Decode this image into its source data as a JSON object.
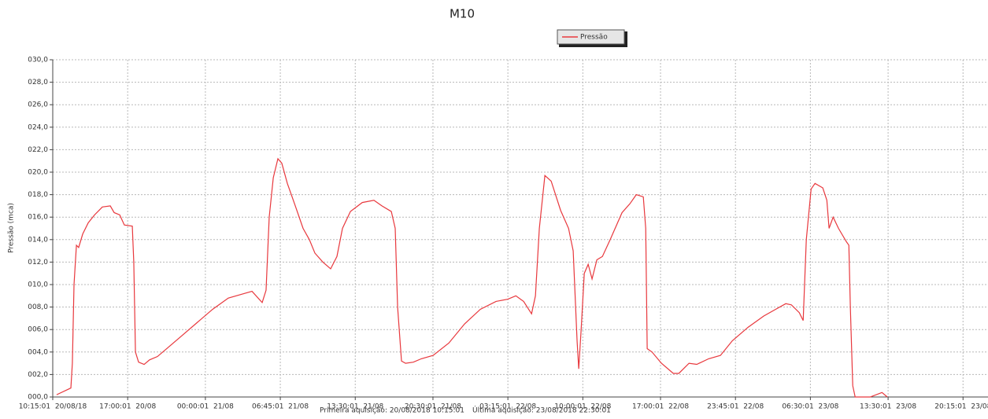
{
  "chart_data": {
    "type": "line",
    "title": "M10",
    "y_label": "Pressão (mca)",
    "annotations": [
      "Primeira aquisição: 20/08/2018 10:15:01",
      "Última aquisição: 23/08/2018 22:30:01"
    ],
    "xlim": [
      "2018-08-20T10:15:01",
      "2018-08-23T22:30:01"
    ],
    "xticks": [
      {
        "value": "2018-08-20T10:15:01",
        "label": "10:15:01  20/08/18"
      },
      {
        "value": "2018-08-20T17:00:01",
        "label": "17:00:01  20/08"
      },
      {
        "value": "2018-08-21T00:00:01",
        "label": "00:00:01  21/08"
      },
      {
        "value": "2018-08-21T06:45:01",
        "label": "06:45:01  21/08"
      },
      {
        "value": "2018-08-21T13:30:01",
        "label": "13:30:01  21/08"
      },
      {
        "value": "2018-08-21T20:30:01",
        "label": "20:30:01  21/08"
      },
      {
        "value": "2018-08-22T03:15:01",
        "label": "03:15:01  22/08"
      },
      {
        "value": "2018-08-22T10:00:01",
        "label": "10:00:01  22/08"
      },
      {
        "value": "2018-08-22T17:00:01",
        "label": "17:00:01  22/08"
      },
      {
        "value": "2018-08-22T23:45:01",
        "label": "23:45:01  22/08"
      },
      {
        "value": "2018-08-23T06:30:01",
        "label": "06:30:01  23/08"
      },
      {
        "value": "2018-08-23T13:30:01",
        "label": "13:30:01  23/08"
      },
      {
        "value": "2018-08-23T20:15:01",
        "label": "20:15:01  23/08"
      }
    ],
    "ylim": [
      0,
      30
    ],
    "yticks": [
      {
        "value": 0,
        "label": "000,0"
      },
      {
        "value": 2,
        "label": "002,0"
      },
      {
        "value": 4,
        "label": "004,0"
      },
      {
        "value": 6,
        "label": "006,0"
      },
      {
        "value": 8,
        "label": "008,0"
      },
      {
        "value": 10,
        "label": "010,0"
      },
      {
        "value": 12,
        "label": "012,0"
      },
      {
        "value": 14,
        "label": "014,0"
      },
      {
        "value": 16,
        "label": "016,0"
      },
      {
        "value": 18,
        "label": "018,0"
      },
      {
        "value": 20,
        "label": "020,0"
      },
      {
        "value": 22,
        "label": "022,0"
      },
      {
        "value": 24,
        "label": "024,0"
      },
      {
        "value": 26,
        "label": "026,0"
      },
      {
        "value": 28,
        "label": "028,0"
      },
      {
        "value": 30,
        "label": "030,0"
      }
    ],
    "grid": true,
    "legend": "top",
    "x": [
      "2018-08-20T10:36",
      "2018-08-20T11:53",
      "2018-08-20T12:01",
      "2018-08-20T12:10",
      "2018-08-20T12:23",
      "2018-08-20T12:35",
      "2018-08-20T12:57",
      "2018-08-20T13:27",
      "2018-08-20T14:01",
      "2018-08-20T14:43",
      "2018-08-20T15:26",
      "2018-08-20T15:47",
      "2018-08-20T16:17",
      "2018-08-20T16:42",
      "2018-08-20T17:25",
      "2018-08-20T17:33",
      "2018-08-20T17:42",
      "2018-08-20T17:59",
      "2018-08-20T18:29",
      "2018-08-20T18:58",
      "2018-08-20T19:41",
      "2018-08-20T20:45",
      "2018-08-20T21:49",
      "2018-08-20T23:14",
      "2018-08-21T00:39",
      "2018-08-21T02:04",
      "2018-08-21T03:29",
      "2018-08-21T04:12",
      "2018-08-21T05:07",
      "2018-08-21T05:28",
      "2018-08-21T05:45",
      "2018-08-21T06:07",
      "2018-08-21T06:32",
      "2018-08-21T06:53",
      "2018-08-21T07:23",
      "2018-08-21T08:06",
      "2018-08-21T08:48",
      "2018-08-21T09:22",
      "2018-08-21T09:52",
      "2018-08-21T10:35",
      "2018-08-21T11:17",
      "2018-08-21T11:51",
      "2018-08-21T12:21",
      "2018-08-21T13:04",
      "2018-08-21T14:08",
      "2018-08-21T15:11",
      "2018-08-21T15:54",
      "2018-08-21T16:45",
      "2018-08-21T17:06",
      "2018-08-21T17:19",
      "2018-08-21T17:40",
      "2018-08-21T18:02",
      "2018-08-21T18:44",
      "2018-08-21T19:27",
      "2018-08-21T20:31",
      "2018-08-21T21:56",
      "2018-08-21T23:21",
      "2018-08-22T00:46",
      "2018-08-22T02:11",
      "2018-08-22T03:15",
      "2018-08-22T03:58",
      "2018-08-22T04:40",
      "2018-08-22T05:23",
      "2018-08-22T05:44",
      "2018-08-22T06:05",
      "2018-08-22T06:35",
      "2018-08-22T07:09",
      "2018-08-22T08:00",
      "2018-08-22T08:43",
      "2018-08-22T09:08",
      "2018-08-22T09:29",
      "2018-08-22T09:38",
      "2018-08-22T09:51",
      "2018-08-22T10:08",
      "2018-08-22T10:29",
      "2018-08-22T10:50",
      "2018-08-22T11:16",
      "2018-08-22T11:46",
      "2018-08-22T12:28",
      "2018-08-22T13:32",
      "2018-08-22T14:15",
      "2018-08-22T14:49",
      "2018-08-22T15:27",
      "2018-08-22T15:40",
      "2018-08-22T15:48",
      "2018-08-22T16:14",
      "2018-08-22T17:05",
      "2018-08-22T18:09",
      "2018-08-22T18:39",
      "2018-08-22T19:34",
      "2018-08-22T20:16",
      "2018-08-22T21:20",
      "2018-08-22T22:24",
      "2018-08-22T23:28",
      "2018-08-23T00:53",
      "2018-08-23T02:18",
      "2018-08-23T03:22",
      "2018-08-23T04:17",
      "2018-08-23T04:47",
      "2018-08-23T05:30",
      "2018-08-23T05:51",
      "2018-08-23T06:08",
      "2018-08-23T06:34",
      "2018-08-23T06:55",
      "2018-08-23T07:37",
      "2018-08-23T07:59",
      "2018-08-23T08:11",
      "2018-08-23T08:33",
      "2018-08-23T09:02",
      "2018-08-23T09:45",
      "2018-08-23T09:58",
      "2018-08-23T10:06",
      "2018-08-23T10:19",
      "2018-08-23T10:32",
      "2018-08-23T11:53",
      "2018-08-23T12:57",
      "2018-08-23T13:26"
    ],
    "series": [
      {
        "name": "Pressão",
        "color": "#e8383d",
        "values": [
          0.2,
          0.8,
          3,
          10,
          13.5,
          13.3,
          14.5,
          15.5,
          16.2,
          16.9,
          17.0,
          16.4,
          16.2,
          15.3,
          15.2,
          12,
          4,
          3.1,
          2.9,
          3.3,
          3.6,
          4.5,
          5.4,
          6.6,
          7.8,
          8.8,
          9.2,
          9.4,
          8.4,
          9.5,
          16,
          19.5,
          21.2,
          20.8,
          19,
          17,
          15,
          14,
          12.8,
          12,
          11.4,
          12.5,
          15,
          16.5,
          17.3,
          17.5,
          17.0,
          16.5,
          15,
          8,
          3.2,
          3,
          3.1,
          3.4,
          3.7,
          4.8,
          6.5,
          7.8,
          8.5,
          8.7,
          9.0,
          8.5,
          7.4,
          9,
          15,
          19.7,
          19.2,
          16.6,
          15,
          13,
          5,
          2.5,
          6,
          11,
          11.8,
          10.5,
          12.2,
          12.5,
          14,
          16.4,
          17.2,
          18,
          17.8,
          15,
          4.3,
          4.0,
          3.0,
          2.1,
          2.1,
          3.0,
          2.9,
          3.4,
          3.7,
          5,
          6.2,
          7.2,
          7.8,
          8.3,
          8.2,
          7.5,
          6.8,
          14,
          18.5,
          19.0,
          18.6,
          17.5,
          15,
          16,
          15,
          13.8,
          13.5,
          8,
          1,
          0,
          0,
          0.4,
          0
        ]
      }
    ]
  }
}
